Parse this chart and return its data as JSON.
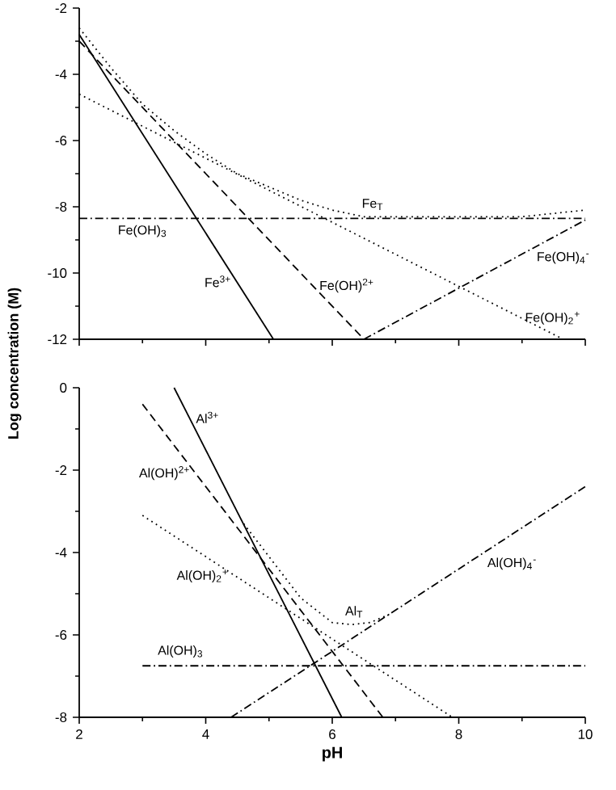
{
  "chart_data": [
    {
      "type": "line",
      "ylabel": "Log concentration (M)",
      "xlim": [
        2,
        10
      ],
      "ylim": [
        -12,
        -2
      ],
      "xticks": [
        2,
        4,
        6,
        8,
        10
      ],
      "yticks": [
        -12,
        -10,
        -8,
        -6,
        -4,
        -2
      ],
      "tick_labels": "y",
      "series": [
        {
          "name": "Fe$^{3+}$",
          "color": "#000000",
          "line_style": "solid",
          "x": [
            2,
            5.07
          ],
          "values": [
            -2.8,
            -12
          ]
        },
        {
          "name": "Fe(OH)$^{2+}$",
          "color": "#000000",
          "line_style": "dashed",
          "x": [
            2,
            6.5
          ],
          "values": [
            -3,
            -12
          ]
        },
        {
          "name": "Fe(OH)$_{2}$$^{+}$",
          "color": "#000000",
          "line_style": "dotted",
          "x": [
            2,
            9.6
          ],
          "values": [
            -4.6,
            -11.95
          ]
        },
        {
          "name": "Fe(OH)$_{3}$",
          "color": "#000000",
          "line_style": "dashdot",
          "x": [
            2,
            10
          ],
          "values": [
            -8.35,
            -8.35
          ]
        },
        {
          "name": "Fe(OH)$_{4}$$^{-}$",
          "color": "#000000",
          "line_style": "dashdot",
          "x": [
            6.5,
            10
          ],
          "values": [
            -12,
            -8.4
          ]
        },
        {
          "name": "Fe$_{T}$",
          "color": "#000000",
          "line_style": "dotted",
          "x": [
            2,
            2.5,
            3,
            3.5,
            4,
            4.5,
            5,
            5.5,
            6,
            6.5,
            7,
            8,
            9,
            10
          ],
          "values": [
            -2.6,
            -3.8,
            -4.9,
            -5.7,
            -6.4,
            -7.0,
            -7.4,
            -7.8,
            -8.1,
            -8.3,
            -8.3,
            -8.3,
            -8.3,
            -8.1
          ]
        }
      ]
    },
    {
      "type": "line",
      "xlabel": "pH",
      "xlim": [
        2,
        10
      ],
      "ylim": [
        -8,
        0
      ],
      "xticks": [
        2,
        4,
        6,
        8,
        10
      ],
      "yticks": [
        -8,
        -6,
        -4,
        -2,
        0
      ],
      "series": [
        {
          "name": "Al$^{3+}$",
          "color": "#000000",
          "line_style": "solid",
          "x": [
            3.5,
            6.15
          ],
          "values": [
            0,
            -8
          ]
        },
        {
          "name": "Al(OH)$^{2+}$",
          "color": "#000000",
          "line_style": "dashed",
          "x": [
            3,
            6.8
          ],
          "values": [
            -0.4,
            -8
          ]
        },
        {
          "name": "Al(OH)$_{2}$$^{+}$",
          "color": "#000000",
          "line_style": "dotted",
          "x": [
            3,
            7.9
          ],
          "values": [
            -3.1,
            -8
          ]
        },
        {
          "name": "Al(OH)$_{3}$",
          "color": "#000000",
          "line_style": "dashdot",
          "x": [
            3,
            10
          ],
          "values": [
            -6.75,
            -6.75
          ]
        },
        {
          "name": "Al(OH)$_{4}$$^{-}$",
          "color": "#000000",
          "line_style": "dashdot",
          "x": [
            4.4,
            10
          ],
          "values": [
            -8,
            -2.4
          ]
        },
        {
          "name": "Al$_{T}$",
          "color": "#000000",
          "line_style": "dotted",
          "x": [
            4.6,
            5,
            5.5,
            6,
            6.3,
            6.6,
            6.9
          ],
          "values": [
            -3.3,
            -4.1,
            -5.1,
            -5.7,
            -5.75,
            -5.7,
            -5.5
          ]
        }
      ]
    }
  ]
}
